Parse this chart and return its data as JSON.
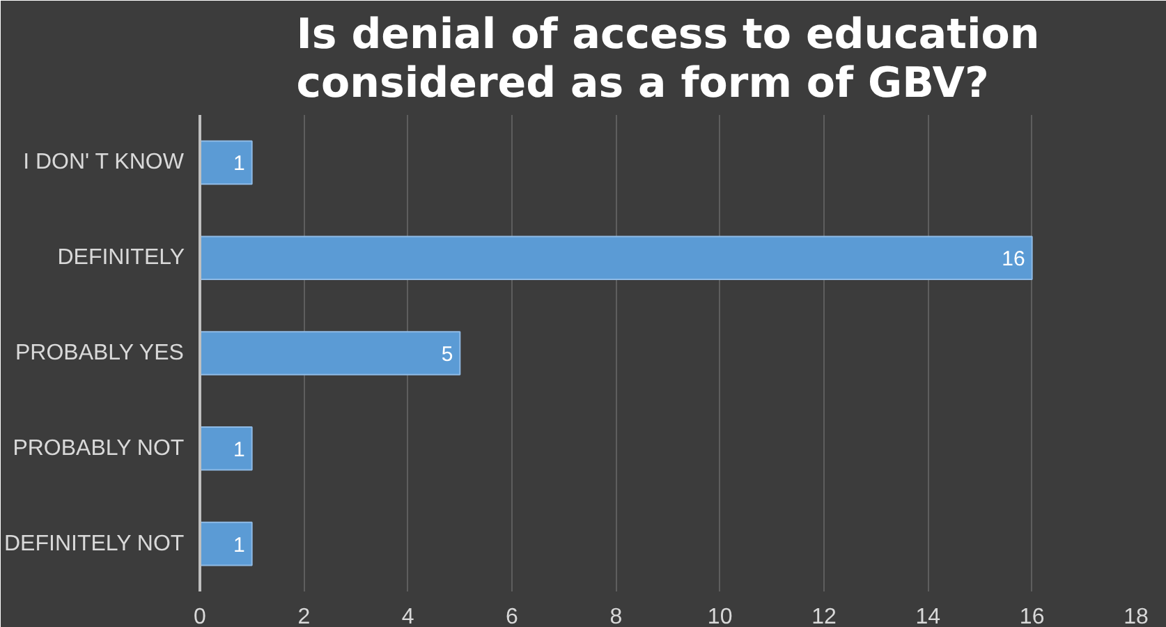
{
  "chart_data": {
    "type": "bar",
    "orientation": "horizontal",
    "title": "Is denial of access to education considered as a form of GBV?",
    "categories": [
      "I DON' T KNOW",
      "DEFINITELY",
      "PROBABLY YES",
      "PROBABLY NOT",
      "DEFINITELY NOT"
    ],
    "values": [
      1,
      16,
      5,
      1,
      1
    ],
    "color": "#5b9bd5",
    "xlim": [
      0,
      18
    ],
    "xticks": [
      0,
      2,
      4,
      6,
      8,
      10,
      12,
      14,
      16,
      18
    ],
    "grid": "x",
    "data_labels": true
  }
}
